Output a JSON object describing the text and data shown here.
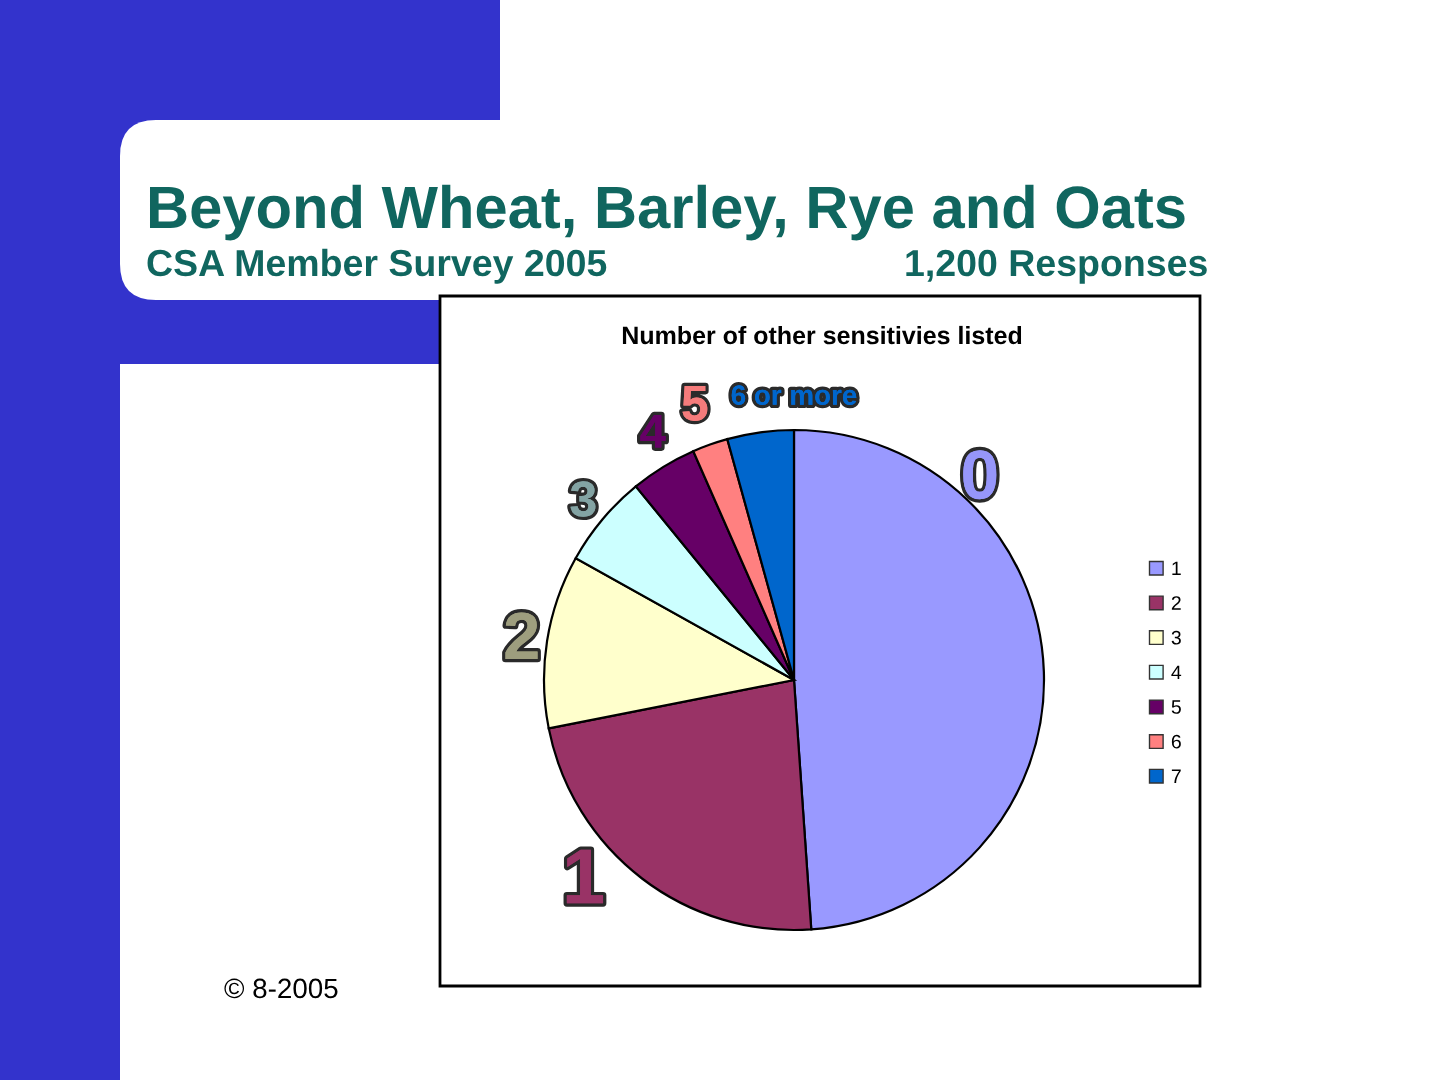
{
  "chart_data": {
    "type": "pie",
    "title": "Beyond Wheat, Barley, Rye and Oats",
    "subtitle": "CSA Member Survey 2005",
    "categories": [
      "1",
      "2",
      "3",
      "4",
      "5",
      "6",
      "7"
    ],
    "values": [
      48.9,
      23.0,
      11.2,
      6.0,
      4.3,
      2.3,
      4.3
    ],
    "colors": [
      "#9999ff",
      "#993366",
      "#ffffcc",
      "#ccffff",
      "#660066",
      "#ff8080",
      "#0066cc"
    ],
    "legend": "right",
    "annotations": [
      "1,200 Responses",
      "Number of other sensitivies listed",
      "© 8-2005",
      {
        "text": "0",
        "x": "1"
      },
      {
        "text": "1",
        "x": "2"
      },
      {
        "text": "2",
        "x": "3"
      },
      {
        "text": "3",
        "x": "4"
      },
      {
        "text": "4",
        "x": "5"
      },
      {
        "text": "5",
        "x": "6"
      },
      {
        "text": "6 or more",
        "x": "7"
      }
    ]
  }
}
